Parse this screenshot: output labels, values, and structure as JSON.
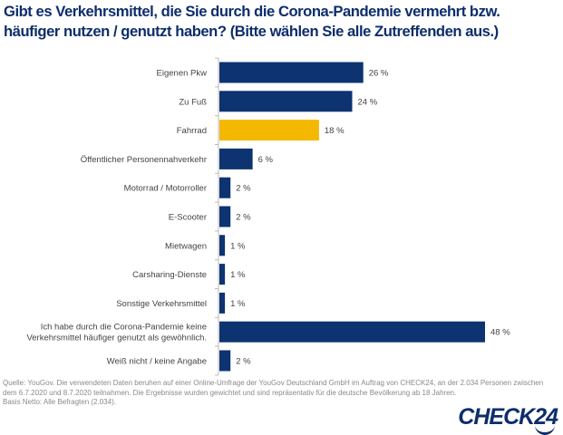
{
  "title_line1": "Gibt es Verkehrsmittel, die Sie durch die Corona-Pandemie vermehrt bzw.",
  "title_line2": "häufiger nutzen / genutzt haben? (Bitte wählen Sie alle Zutreffenden aus.)",
  "chart_data": {
    "type": "bar",
    "orientation": "horizontal",
    "title": "Gibt es Verkehrsmittel, die Sie durch die Corona-Pandemie vermehrt bzw. häufiger nutzen / genutzt haben? (Bitte wählen Sie alle Zutreffenden aus.)",
    "categories": [
      [
        "Eigenen Pkw"
      ],
      [
        "Zu Fuß"
      ],
      [
        "Fahrrad"
      ],
      [
        "Öffentlicher Personennahverkehr"
      ],
      [
        "Motorrad / Motorroller"
      ],
      [
        "E-Scooter"
      ],
      [
        "Mietwagen"
      ],
      [
        "Carsharing-Dienste"
      ],
      [
        "Sonstige Verkehrsmittel"
      ],
      [
        "Ich habe durch die Corona-Pandemie keine",
        "Verkehrsmittel häufiger genutzt als gewöhnlich."
      ],
      [
        "Weiß nicht / keine Angabe"
      ]
    ],
    "values": [
      26,
      24,
      18,
      6,
      2,
      2,
      1,
      1,
      1,
      48,
      2
    ],
    "value_labels": [
      "26 %",
      "24 %",
      "18 %",
      "6 %",
      "2 %",
      "2 %",
      "1 %",
      "1 %",
      "1 %",
      "48 %",
      "2 %"
    ],
    "highlight_index": 2,
    "colors": {
      "bar": "#0d3370",
      "highlight": "#f5b800",
      "label": "#444444",
      "axis": "#bbbbbb"
    },
    "xlim": [
      0,
      48
    ],
    "unit": "%"
  },
  "footer": {
    "line1": "Quelle: YouGov. Die verwendeten Daten beruhen auf einer Online-Umfrage der YouGov Deutschland GmbH im Auftrag von CHECK24, an der 2.034 Personen zwischen",
    "line2": "dem 6.7.2020 und 8.7.2020 teilnahmen. Die Ergebnisse wurden gewichtet und sind repräsentativ für die deutsche Bevölkerung ab 18 Jahren.",
    "line3": "Basis Netto: Alle Befragten (2.034)."
  },
  "logo": "CHECK24"
}
